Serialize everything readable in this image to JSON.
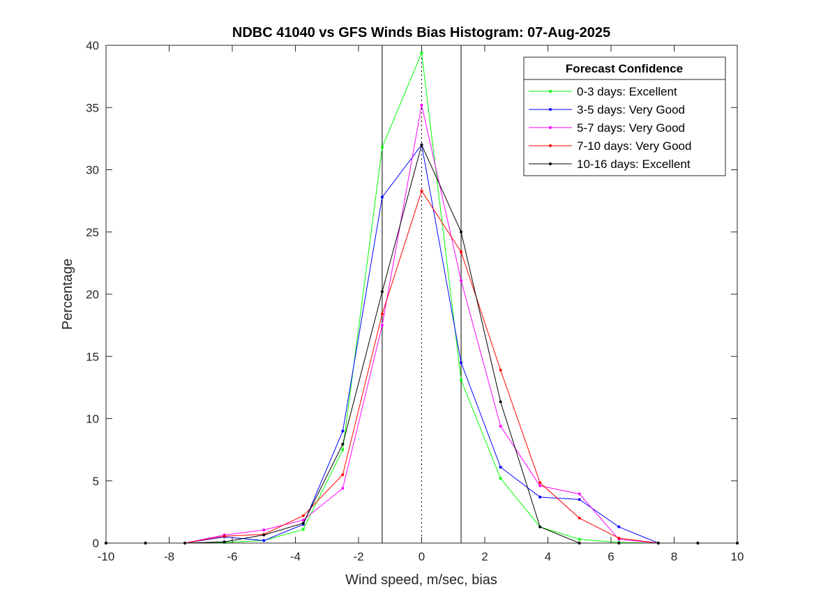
{
  "chart_data": {
    "type": "line",
    "title": "NDBC 41040 vs GFS Winds Bias Histogram: 07-Aug-2025",
    "xlabel": "Wind speed, m/sec, bias",
    "ylabel": "Percentage",
    "xlim": [
      -10,
      10
    ],
    "ylim": [
      0,
      40
    ],
    "xticks": [
      -10,
      -8,
      -6,
      -4,
      -2,
      0,
      2,
      4,
      6,
      8,
      10
    ],
    "yticks": [
      0,
      5,
      10,
      15,
      20,
      25,
      30,
      35,
      40
    ],
    "x": [
      -10,
      -8.75,
      -7.5,
      -6.25,
      -5,
      -3.75,
      -2.5,
      -1.25,
      0,
      1.25,
      2.5,
      3.75,
      5,
      6.25,
      7.5,
      8.75,
      10
    ],
    "reference_lines": {
      "solid_x": [
        -1.25,
        1.25
      ],
      "dotted_x": [
        0
      ]
    },
    "legend": {
      "title": "Forecast Confidence",
      "location": "top-right"
    },
    "grid": false,
    "series": [
      {
        "name": "0-3 days: Excellent",
        "color": "#00ff00",
        "values": [
          0,
          0,
          0,
          0.05,
          0.2,
          1.1,
          7.5,
          31.8,
          39.4,
          13.1,
          5.2,
          1.3,
          0.3,
          0.05,
          0,
          0,
          0
        ]
      },
      {
        "name": "3-5 days: Very Good",
        "color": "#0000ff",
        "values": [
          0,
          0,
          0,
          0.5,
          0.2,
          1.5,
          9.0,
          27.8,
          32.0,
          14.5,
          6.1,
          3.7,
          3.5,
          1.3,
          0,
          0,
          0
        ]
      },
      {
        "name": "5-7 days: Very Good",
        "color": "#ff00ff",
        "values": [
          0,
          0,
          0,
          0.65,
          1.05,
          1.85,
          4.4,
          17.5,
          35.2,
          21.1,
          9.4,
          4.6,
          3.95,
          0.3,
          0,
          0,
          0
        ]
      },
      {
        "name": "7-10 days: Very Good",
        "color": "#ff0000",
        "values": [
          0,
          0,
          0,
          0.55,
          0.7,
          2.2,
          5.5,
          18.4,
          28.3,
          23.4,
          13.9,
          4.85,
          2.0,
          0.4,
          0,
          0,
          0
        ]
      },
      {
        "name": "10-16 days: Excellent",
        "color": "#000000",
        "values": [
          0,
          0,
          0,
          0.1,
          0.65,
          1.6,
          7.95,
          20.2,
          32.0,
          25.0,
          11.35,
          1.3,
          0,
          0,
          0,
          0,
          0
        ]
      }
    ]
  }
}
